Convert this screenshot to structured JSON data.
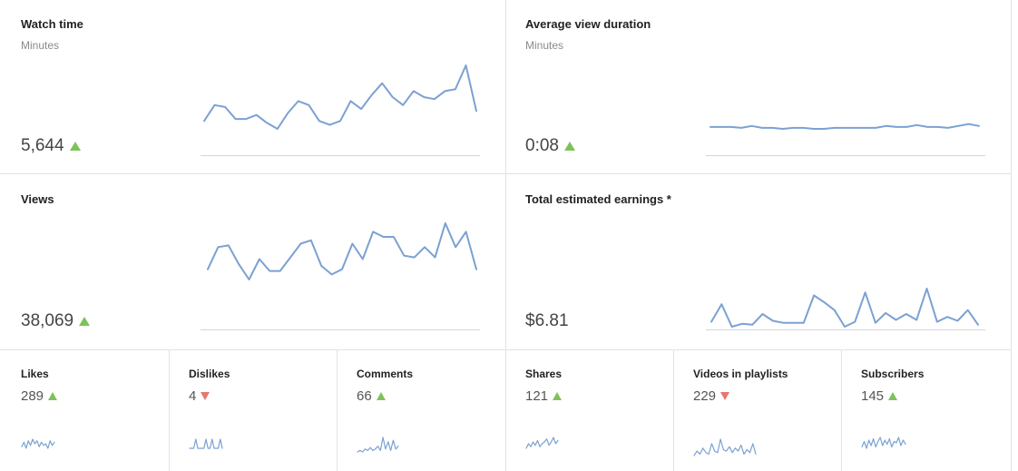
{
  "cards": {
    "watch_time": {
      "title": "Watch time",
      "subtitle": "Minutes",
      "value": "5,644",
      "trend": "up"
    },
    "avg_view_duration": {
      "title": "Average view duration",
      "subtitle": "Minutes",
      "value": "0:08",
      "trend": "up"
    },
    "views": {
      "title": "Views",
      "value": "38,069",
      "trend": "up"
    },
    "earnings": {
      "title": "Total estimated earnings *",
      "value": "$6.81"
    }
  },
  "small_cards": [
    {
      "title": "Likes",
      "value": "289",
      "trend": "up"
    },
    {
      "title": "Dislikes",
      "value": "4",
      "trend": "down"
    },
    {
      "title": "Comments",
      "value": "66",
      "trend": "up"
    },
    {
      "title": "Shares",
      "value": "121",
      "trend": "up"
    },
    {
      "title": "Videos in playlists",
      "value": "229",
      "trend": "down"
    },
    {
      "title": "Subscribers",
      "value": "145",
      "trend": "up"
    }
  ],
  "colors": {
    "line": "#7ba1d2",
    "up": "#7cc35a",
    "down": "#e8776d",
    "divider": "#e2e2e2"
  },
  "chart_data": [
    {
      "type": "line",
      "title": "Watch time",
      "values": [
        30,
        38,
        37,
        31,
        31,
        33,
        29,
        26,
        34,
        40,
        38,
        30,
        28,
        30,
        40,
        36,
        43,
        49,
        42,
        38,
        45,
        42,
        41,
        45,
        46,
        58,
        35
      ]
    },
    {
      "type": "line",
      "title": "Average view duration",
      "values": [
        16,
        16,
        16,
        15,
        17,
        15,
        15,
        14,
        15,
        15,
        14,
        14,
        15,
        15,
        15,
        15,
        15,
        17,
        16,
        16,
        18,
        16,
        16,
        15,
        17,
        19,
        17
      ]
    },
    {
      "type": "line",
      "title": "Views",
      "values": [
        40,
        53,
        54,
        43,
        34,
        46,
        39,
        39,
        47,
        55,
        57,
        42,
        37,
        40,
        55,
        46,
        62,
        59,
        59,
        48,
        47,
        53,
        47,
        67,
        53,
        62,
        40
      ]
    },
    {
      "type": "line",
      "title": "Total estimated earnings *",
      "values": [
        10,
        28,
        5,
        8,
        7,
        18,
        11,
        9,
        9,
        9,
        37,
        30,
        22,
        5,
        10,
        40,
        9,
        19,
        12,
        18,
        12,
        44,
        10,
        15,
        11,
        22,
        7
      ]
    },
    {
      "type": "line",
      "title": "Likes",
      "values": [
        4,
        7,
        3,
        8,
        5,
        9,
        6,
        8,
        4,
        7,
        5,
        6,
        3,
        8,
        5,
        7
      ]
    },
    {
      "type": "line",
      "title": "Dislikes",
      "values": [
        1,
        1,
        1,
        7,
        1,
        1,
        1,
        1,
        7,
        1,
        1,
        7,
        1,
        1,
        1,
        7,
        1
      ]
    },
    {
      "type": "line",
      "title": "Comments",
      "values": [
        2,
        3,
        2,
        4,
        3,
        5,
        3,
        4,
        6,
        3,
        12,
        4,
        9,
        3,
        10,
        4,
        6
      ]
    },
    {
      "type": "line",
      "title": "Shares",
      "values": [
        5,
        8,
        6,
        9,
        7,
        10,
        6,
        8,
        9,
        11,
        7,
        9,
        12,
        8,
        10
      ]
    },
    {
      "type": "line",
      "title": "Videos in playlists",
      "values": [
        3,
        6,
        4,
        8,
        5,
        4,
        11,
        6,
        5,
        14,
        7,
        6,
        9,
        5,
        8,
        6,
        10,
        4,
        7,
        5,
        11,
        4
      ]
    },
    {
      "type": "line",
      "title": "Subscribers",
      "values": [
        5,
        9,
        4,
        10,
        6,
        11,
        5,
        9,
        12,
        6,
        10,
        7,
        11,
        5,
        9,
        8,
        12,
        6,
        10,
        7
      ]
    }
  ]
}
